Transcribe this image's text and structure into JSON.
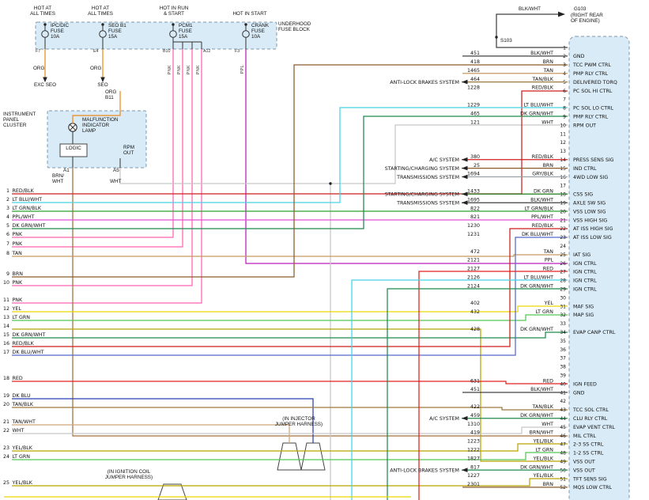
{
  "wire_colors": {
    "ORG": "#ef8a1d",
    "PNK": "#ff64b0",
    "PPL": "#bb1fbb",
    "PPL/WHT": "#e24fd8",
    "BRN": "#8a5a2a",
    "BRN/WHT": "#a2713b",
    "TAN": "#c59a5f",
    "TAN/BLK": "#9c7a3f",
    "TAN/WHT": "#d0a878",
    "RED": "#e32222",
    "RED/BLK": "#cf1f1f",
    "LT BLU/WHT": "#45d4e6",
    "LT GRN": "#53c653",
    "LT GRN/BLK": "#2fa12f",
    "DK GRN": "#1e7c1e",
    "DK GRN/WHT": "#1f8a4d",
    "DK BLU": "#2640b0",
    "DK BLU/WHT": "#5668cc",
    "YEL": "#ecd800",
    "YEL/BLK": "#b9a300",
    "GRY/BLK": "#9aa0a6",
    "WHT": "#c6c6c6",
    "BLK/WHT": "#404040"
  },
  "power_feeds": [
    "HOT AT\nALL TIMES",
    "HOT AT\nALL TIMES",
    "HOT IN RUN\n& START",
    "HOT IN START"
  ],
  "fuse_block": {
    "label": "UNDERHOOD\nFUSE BLOCK",
    "fuses": [
      {
        "name": "IPC/DIC\nFUSE\n10A",
        "wire": "ORG"
      },
      {
        "name": "SEO B1\nFUSE\n15A",
        "wire": "ORG"
      },
      {
        "name": "PCM1\nFUSE\n15A",
        "wire": "PNK"
      },
      {
        "name": "CRANK\nFUSE\n10A",
        "wire": "PPL"
      }
    ]
  },
  "terminals": [
    "F7",
    "E4",
    "B10",
    "A12",
    "F3"
  ],
  "vertical_wire_labels": [
    "PNK",
    "PNK",
    "PNK",
    "PNK",
    "PPL"
  ],
  "splice_labels": {
    "org": "ORG",
    "exc_seo": "EXC SEO",
    "seo": "SEO",
    "org_b11": "ORG\nB11"
  },
  "cluster": {
    "label": "INSTRUMENT\nPANEL\nCLUSTER",
    "mil": "MALFUNCTION\nINDICATOR\nLAMP",
    "logic": "LOGIC",
    "rpm_out": "RPM\nOUT",
    "pin_a1": "A1",
    "pin_a5": "A5",
    "wire_a1": "BRN/\nWHT",
    "wire_a5": "WHT"
  },
  "ground": {
    "splice": "S103",
    "wire": "BLK/WHT",
    "ground_id": "G103",
    "location": "(RIGHT REAR\nOF ENGINE)"
  },
  "harness_notes": {
    "injector": "(IN INJECTOR\nJUMPER HARNESS)",
    "ignition_coil": "(IN IGNITION COIL\nJUMPER HARNESS)"
  },
  "left_wires": [
    {
      "n": 1,
      "label": "RED/BLK"
    },
    {
      "n": 2,
      "label": "LT BLU/WHT"
    },
    {
      "n": 3,
      "label": "LT GRN/BLK"
    },
    {
      "n": 4,
      "label": "PPL/WHT"
    },
    {
      "n": 5,
      "label": "DK GRN/WHT"
    },
    {
      "n": 6,
      "label": "PNK"
    },
    {
      "n": 7,
      "label": "PNK"
    },
    {
      "n": 8,
      "label": "TAN"
    },
    {
      "n": 9,
      "label": "BRN"
    },
    {
      "n": 10,
      "label": "PNK"
    },
    {
      "n": 11,
      "label": "PNK"
    },
    {
      "n": 12,
      "label": "YEL"
    },
    {
      "n": 13,
      "label": "LT GRN"
    },
    {
      "n": 14,
      "label": ""
    },
    {
      "n": 15,
      "label": "DK GRN/WHT"
    },
    {
      "n": 16,
      "label": "RED/BLK"
    },
    {
      "n": 17,
      "label": "DK BLU/WHT"
    },
    {
      "n": 18,
      "label": "RED"
    },
    {
      "n": 19,
      "label": "DK BLU"
    },
    {
      "n": 20,
      "label": "TAN/BLK"
    },
    {
      "n": 21,
      "label": "TAN/WHT"
    },
    {
      "n": 22,
      "label": "WHT"
    },
    {
      "n": 23,
      "label": "YEL/BLK"
    },
    {
      "n": 24,
      "label": "LT GRN"
    },
    {
      "n": 25,
      "label": "YEL/BLK"
    }
  ],
  "pcm": {
    "pins": [
      {},
      {
        "wire": "451",
        "color": "BLK/WHT",
        "label": "GND"
      },
      {
        "wire": "418",
        "color": "BRN",
        "label": "TCC PWM CTRL"
      },
      {
        "wire": "1465",
        "color": "TAN",
        "label": "PMP RLY CTRL"
      },
      {
        "wire": "464",
        "color": "TAN/BLK",
        "label": "DELIVERED TORQ",
        "system": "ANTI-LOCK BRAKES SYSTEM"
      },
      {
        "wire": "1228",
        "color": "RED/BLK",
        "label": "PC SOL HI CTRL"
      },
      {},
      {
        "wire": "1229",
        "color": "LT BLU/WHT",
        "label": "PC SOL LO CTRL"
      },
      {
        "wire": "465",
        "color": "DK GRN/WHT",
        "label": "PMP RLY CTRL"
      },
      {
        "wire": "121",
        "color": "WHT",
        "label": "RPM OUT"
      },
      {},
      {},
      {},
      {
        "wire": "380",
        "color": "RED/BLK",
        "label": "PRESS SENS SIG",
        "system": "A/C SYSTEM"
      },
      {
        "wire": "25",
        "color": "BRN",
        "label": "IND CTRL",
        "system": "STARTING/CHARGING SYSTEM"
      },
      {
        "wire": "1694",
        "color": "GRY/BLK",
        "label": "4WD LOW SIG",
        "system": "TRANSMISSIONS SYSTEM"
      },
      {},
      {
        "wire": "1433",
        "color": "DK GRN",
        "label": "CSS SIG",
        "system": "STARTING/CHARGING SYSTEM"
      },
      {
        "wire": "1695",
        "color": "BLK/WHT",
        "label": "AXLE SW SIG",
        "system": "TRANSMISSIONS SYSTEM"
      },
      {
        "wire": "822",
        "color": "LT GRN/BLK",
        "label": "VSS LOW SIG"
      },
      {
        "wire": "821",
        "color": "PPL/WHT",
        "label": "VSS HIGH SIG"
      },
      {
        "wire": "1230",
        "color": "RED/BLK",
        "label": "AT ISS HIGH SIG"
      },
      {
        "wire": "1231",
        "color": "DK BLU/WHT",
        "label": "AT ISS LOW SIG"
      },
      {},
      {
        "wire": "472",
        "color": "TAN",
        "label": "IAT SIG"
      },
      {
        "wire": "2121",
        "color": "PPL",
        "label": "IGN CTRL"
      },
      {
        "wire": "2127",
        "color": "RED",
        "label": "IGN CTRL"
      },
      {
        "wire": "2126",
        "color": "LT BLU/WHT",
        "label": "IGN CTRL"
      },
      {
        "wire": "2124",
        "color": "DK GRN/WHT",
        "label": "IGN CTRL"
      },
      {},
      {
        "wire": "402",
        "color": "YEL",
        "label": "MAF SIG"
      },
      {
        "wire": "432",
        "color": "LT GRN",
        "label": "MAP SIG"
      },
      {},
      {
        "wire": "428",
        "color": "DK GRN/WHT",
        "label": "EVAP CANP CTRL"
      },
      {},
      {},
      {},
      {},
      {},
      {
        "wire": "631",
        "color": "RED",
        "label": "IGN FEED"
      },
      {
        "wire": "451",
        "color": "BLK/WHT",
        "label": "GND"
      },
      {},
      {
        "wire": "422",
        "color": "TAN/BLK",
        "label": "TCC SOL CTRL"
      },
      {
        "wire": "459",
        "color": "DK GRN/WHT",
        "label": "CLU RLY CTRL",
        "system": "A/C SYSTEM"
      },
      {
        "wire": "1310",
        "color": "WHT",
        "label": "EVAP VENT CTRL"
      },
      {
        "wire": "419",
        "color": "BRN/WHT",
        "label": "MIL CTRL"
      },
      {
        "wire": "1223",
        "color": "YEL/BLK",
        "label": "2-3 SS CTRL"
      },
      {
        "wire": "1222",
        "color": "LT GRN",
        "label": "1-2 SS CTRL"
      },
      {
        "wire": "1827",
        "color": "YEL/BLK",
        "label": "VSS OUT"
      },
      {
        "wire": "817",
        "color": "DK GRN/WHT",
        "label": "VSS OUT",
        "system": "ANTI-LOCK BRAKES SYSTEM"
      },
      {
        "wire": "1227",
        "color": "YEL/BLK",
        "label": "TFT SENS SIG"
      },
      {
        "wire": "2301",
        "color": "BRN",
        "label": "MQS LOW CTRL"
      }
    ]
  }
}
